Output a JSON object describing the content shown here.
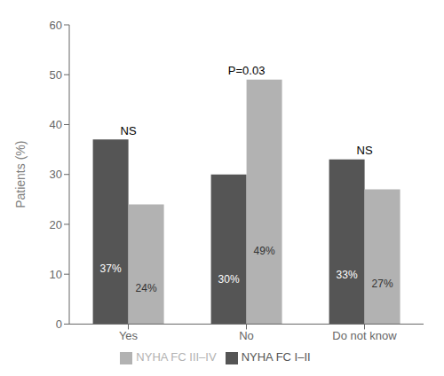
{
  "chart_data": {
    "type": "bar",
    "categories": [
      "Yes",
      "No",
      "Do not know"
    ],
    "series": [
      {
        "name": "NYHA FC I–II",
        "color": "#555555",
        "values": [
          37,
          30,
          33
        ],
        "value_labels": [
          "37%",
          "30%",
          "33%"
        ]
      },
      {
        "name": "NYHA FC III–IV",
        "color": "#b2b2b2",
        "values": [
          24,
          49,
          27
        ],
        "value_labels": [
          "24%",
          "49%",
          "27%"
        ]
      }
    ],
    "annotations": [
      "NS",
      "P=0.03",
      "NS"
    ],
    "ylabel": "Patients (%)",
    "ylim": [
      0,
      60
    ],
    "yticks": [
      0,
      10,
      20,
      30,
      40,
      50,
      60
    ],
    "data_labels": true,
    "grid": false,
    "legend": "bottom"
  }
}
